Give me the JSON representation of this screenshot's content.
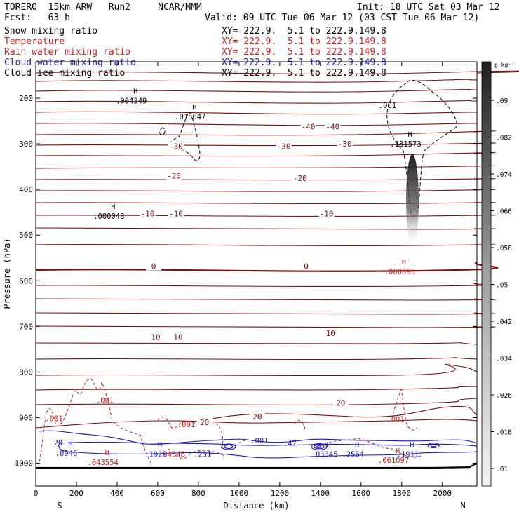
{
  "header": {
    "model": "TORERO  15km ARW   Run2     NCAR/MMM",
    "init": "Init: 18 UTC Sat 03 Mar 12",
    "fcst": "Fcst:   63 h",
    "valid": "Valid: 09 UTC Tue 06 Mar 12 (03 CST Tue 06 Mar 12)",
    "fields": [
      {
        "name": "Snow mixing ratio",
        "xy": "XY= 222.9.  5.1 to 222.9.149.8",
        "color": "#000000"
      },
      {
        "name": "Temperature",
        "xy": "XY= 222.9.  5.1 to 222.9.149.8",
        "color": "#cc2222"
      },
      {
        "name": "Rain water mixing ratio",
        "xy": "XY= 222.9.  5.1 to 222.9.149.8",
        "color": "#cc2222"
      },
      {
        "name": "Cloud water mixing ratio",
        "xy": "XY= 222.9.  5.1 to 222.9.149.8",
        "color": "#1a1ab0"
      },
      {
        "name": "Cloud ice mixing ratio",
        "xy": "XY= 222.9.  5.1 to 222.9.149.8",
        "color": "#000000"
      }
    ]
  },
  "chart_data": {
    "type": "cross-section",
    "xlabel": "Distance (km)",
    "ylabel": "Pressure (hPa)",
    "xlim": [
      0,
      2170
    ],
    "ylim": [
      1050,
      120
    ],
    "xticks": [
      0,
      200,
      400,
      600,
      800,
      1000,
      1200,
      1400,
      1600,
      1800,
      2000
    ],
    "yticks": [
      200,
      300,
      400,
      500,
      600,
      700,
      800,
      900,
      1000
    ],
    "end_labels": {
      "left": "S",
      "right": "N"
    },
    "colorbar": {
      "unit": "g kg⁻¹",
      "ticks": [
        ".01",
        ".018",
        ".026",
        ".034",
        ".042",
        ".05",
        ".058",
        ".066",
        ".074",
        ".082",
        ".09"
      ]
    },
    "temperature_contours": [
      {
        "label": "-40",
        "at": [
          [
            1340,
            262
          ],
          [
            1460,
            262
          ]
        ]
      },
      {
        "label": "-30",
        "at": [
          [
            690,
            305
          ],
          [
            1220,
            305
          ],
          [
            1520,
            300
          ]
        ]
      },
      {
        "label": "-20",
        "at": [
          [
            680,
            370
          ],
          [
            1300,
            375
          ]
        ]
      },
      {
        "label": "-10",
        "at": [
          [
            550,
            453
          ],
          [
            690,
            453
          ],
          [
            1430,
            453
          ]
        ]
      },
      {
        "label": "0",
        "at": [
          [
            580,
            568
          ],
          [
            1330,
            568
          ]
        ]
      },
      {
        "label": "10",
        "at": [
          [
            590,
            723
          ],
          [
            700,
            723
          ],
          [
            1450,
            715
          ]
        ]
      },
      {
        "label": "20",
        "at": [
          [
            1500,
            868
          ],
          [
            1090,
            898
          ],
          [
            830,
            910
          ]
        ]
      }
    ],
    "annotations": [
      {
        "text": ".004349",
        "x": 470,
        "y": 205,
        "color": "#000000"
      },
      {
        "text": ".015647",
        "x": 760,
        "y": 240,
        "color": "#000000"
      },
      {
        "text": ".001",
        "x": 1730,
        "y": 215,
        "color": "#000000"
      },
      {
        "text": ".181573",
        "x": 1820,
        "y": 300,
        "color": "#000000"
      },
      {
        "text": ".000048",
        "x": 360,
        "y": 458,
        "color": "#000000"
      },
      {
        "text": ".000095",
        "x": 1790,
        "y": 580,
        "color": "#cc2222"
      },
      {
        "text": ".001",
        "x": 340,
        "y": 862,
        "color": "#cc2222"
      },
      {
        "text": ".001",
        "x": 90,
        "y": 902,
        "color": "#cc2222"
      },
      {
        "text": ".001",
        "x": 740,
        "y": 915,
        "color": "#cc2222"
      },
      {
        "text": ".001",
        "x": 1770,
        "y": 903,
        "color": "#cc2222"
      },
      {
        "text": ".001",
        "x": 1100,
        "y": 950,
        "color": "#1a1ab0"
      },
      {
        "text": ".47",
        "x": 1250,
        "y": 956,
        "color": "#1a1ab0"
      },
      {
        "text": ".0946",
        "x": 150,
        "y": 978,
        "color": "#1a1ab0"
      },
      {
        "text": ".1929",
        "x": 590,
        "y": 980,
        "color": "#1a1ab0"
      },
      {
        "text": "04348",
        "x": 680,
        "y": 980,
        "color": "#cc2222"
      },
      {
        "text": ".231",
        "x": 820,
        "y": 980,
        "color": "#1a1ab0"
      },
      {
        "text": ".03345",
        "x": 1420,
        "y": 980,
        "color": "#1a1ab0"
      },
      {
        "text": ".2564",
        "x": 1560,
        "y": 980,
        "color": "#1a1ab0"
      },
      {
        "text": ".1911",
        "x": 1830,
        "y": 980,
        "color": "#1a1ab0"
      },
      {
        "text": ".061097",
        "x": 1760,
        "y": 993,
        "color": "#cc2222"
      },
      {
        "text": ".043554",
        "x": 330,
        "y": 998,
        "color": "#cc2222"
      },
      {
        "text": "20",
        "x": 110,
        "y": 955,
        "color": "#1a1ab0"
      }
    ]
  }
}
